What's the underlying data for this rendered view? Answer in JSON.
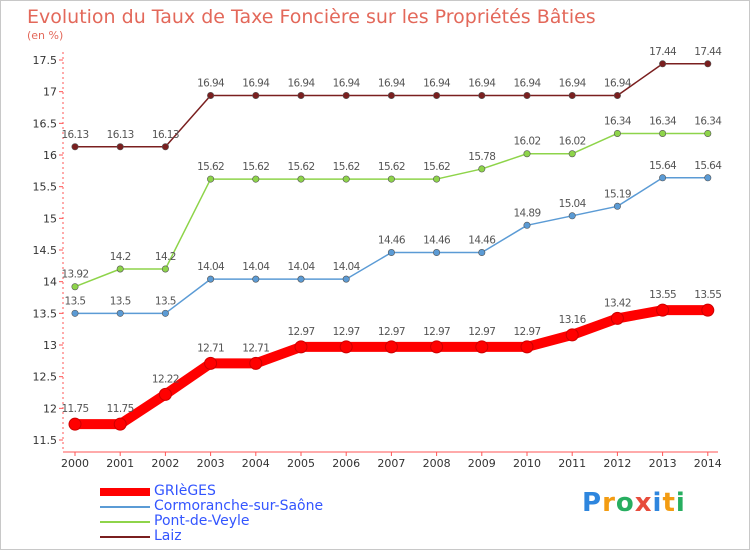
{
  "title": "Evolution du Taux de Taxe Foncière sur les Propriétés Bâties",
  "unit_label": "(en %)",
  "logo": {
    "text": "Proxiti",
    "colors": [
      "#2e86de",
      "#f39c12",
      "#27ae60",
      "#e74c3c"
    ]
  },
  "chart_data": {
    "type": "line",
    "x": [
      "2000",
      "2001",
      "2002",
      "2003",
      "2004",
      "2005",
      "2006",
      "2007",
      "2008",
      "2009",
      "2010",
      "2011",
      "2012",
      "2013",
      "2014"
    ],
    "ylim": [
      11.5,
      17.5
    ],
    "yticks": [
      "11.5",
      "12",
      "12.5",
      "13",
      "13.5",
      "14",
      "14.5",
      "15",
      "15.5",
      "16",
      "16.5",
      "17",
      "17.5"
    ],
    "grid": false,
    "legend_position": "bottom-left",
    "series": [
      {
        "name": "GRIèGES",
        "color": "#ff0000",
        "values": [
          11.75,
          11.75,
          12.22,
          12.71,
          12.71,
          12.97,
          12.97,
          12.97,
          12.97,
          12.97,
          12.97,
          13.16,
          13.42,
          13.55,
          13.55
        ],
        "labels": [
          "11.75",
          "11.75",
          "12.22",
          "12.71",
          "12.71",
          "12.97",
          "12.97",
          "12.97",
          "12.97",
          "12.97",
          "12.97",
          "13.16",
          "13.42",
          "13.55",
          "13.55"
        ]
      },
      {
        "name": "Cormoranche-sur-Saône",
        "color": "#5b9bd5",
        "values": [
          13.5,
          13.5,
          13.5,
          14.04,
          14.04,
          14.04,
          14.04,
          14.46,
          14.46,
          14.46,
          14.89,
          15.04,
          15.19,
          15.64,
          15.64
        ],
        "labels": [
          "13.5",
          "13.5",
          "13.5",
          "14.04",
          "14.04",
          "14.04",
          "14.04",
          "14.46",
          "14.46",
          "14.46",
          "14.89",
          "15.04",
          "15.19",
          "15.64",
          "15.64"
        ]
      },
      {
        "name": "Pont-de-Veyle",
        "color": "#8ed44a",
        "values": [
          13.92,
          14.2,
          14.2,
          15.62,
          15.62,
          15.62,
          15.62,
          15.62,
          15.62,
          15.78,
          16.02,
          16.02,
          16.34,
          16.34,
          16.34
        ],
        "labels": [
          "13.92",
          "14.2",
          "14.2",
          "15.62",
          "15.62",
          "15.62",
          "15.62",
          "15.62",
          "15.62",
          "15.78",
          "16.02",
          "16.02",
          "16.34",
          "16.34",
          "16.34"
        ]
      },
      {
        "name": "Laiz",
        "color": "#7a1f1f",
        "values": [
          16.13,
          16.13,
          16.13,
          16.94,
          16.94,
          16.94,
          16.94,
          16.94,
          16.94,
          16.94,
          16.94,
          16.94,
          16.94,
          17.44,
          17.44
        ],
        "labels": [
          "16.13",
          "16.13",
          "16.13",
          "16.94",
          "16.94",
          "16.94",
          "16.94",
          "16.94",
          "16.94",
          "16.94",
          "16.94",
          "16.94",
          "16.94",
          "17.44",
          "17.44"
        ]
      }
    ]
  }
}
